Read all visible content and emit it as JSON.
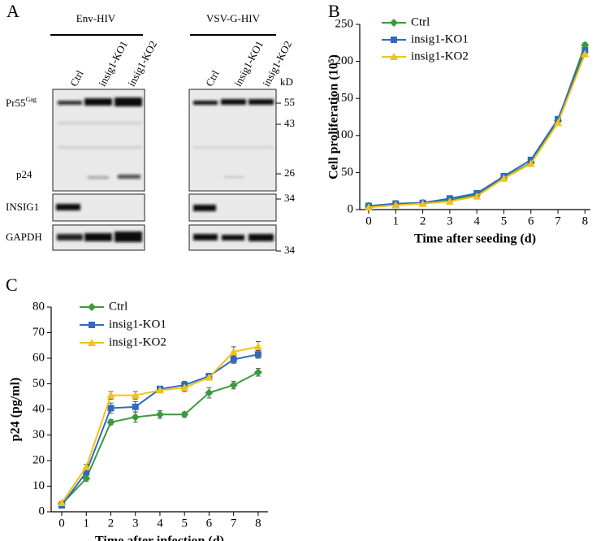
{
  "blot": {
    "panel": "A",
    "groups": [
      {
        "title": "Env-HIV",
        "lanes": [
          "Ctrl",
          "insig1-KO1",
          "insig1-KO2"
        ]
      },
      {
        "title": "VSV-G-HIV",
        "lanes": [
          "Ctrl",
          "insig1-KO1",
          "insig1-KO2"
        ]
      }
    ],
    "rows": [
      {
        "label": "Pr55",
        "sup": "Gag"
      },
      {
        "label": "p24"
      },
      {
        "label": "INSIG1"
      },
      {
        "label": "GAPDH"
      }
    ],
    "marker_unit": "kD",
    "markers": [
      55,
      43,
      26,
      34,
      34
    ]
  },
  "chart_data": [
    {
      "type": "line",
      "panel": "B",
      "x_label": "Time after seeding (d)",
      "y_label": "Cell proliferation (10⁵)",
      "x": [
        0,
        1,
        2,
        3,
        4,
        5,
        6,
        7,
        8
      ],
      "xlim": [
        -0.33,
        8.2
      ],
      "xticks": [
        0,
        1,
        2,
        3,
        4,
        5,
        6,
        7,
        8
      ],
      "ylim": [
        0,
        250
      ],
      "yticks": [
        0,
        50,
        100,
        150,
        200,
        250
      ],
      "legend": "upper left",
      "series": [
        {
          "name": "Ctrl",
          "color": "#3a9a3a",
          "marker": "diamond",
          "values": [
            5,
            8,
            9,
            13,
            20,
            43,
            63,
            120,
            222
          ],
          "errors": [
            0.5,
            0.5,
            0.5,
            1,
            1,
            1,
            2,
            2,
            3
          ]
        },
        {
          "name": "insig1-KO1",
          "color": "#2e6bbf",
          "marker": "square",
          "values": [
            5,
            8,
            9,
            15,
            22,
            45,
            67,
            122,
            215
          ],
          "errors": [
            0.5,
            0.5,
            0.5,
            1,
            1,
            1,
            2,
            2,
            3
          ]
        },
        {
          "name": "insig1-KO2",
          "color": "#f2c21b",
          "marker": "triangle",
          "values": [
            3,
            6,
            8,
            11,
            18,
            42,
            62,
            117,
            210
          ],
          "errors": [
            0.5,
            0.5,
            0.5,
            1,
            1,
            1,
            2,
            2,
            3
          ]
        }
      ]
    },
    {
      "type": "line",
      "panel": "C",
      "x_label": "Time after infection (d)",
      "y_label": "p24 (pg/ml)",
      "x": [
        0,
        1,
        2,
        3,
        4,
        5,
        6,
        7,
        8
      ],
      "xlim": [
        -0.43,
        8.4
      ],
      "xticks": [
        0,
        1,
        2,
        3,
        4,
        5,
        6,
        7,
        8
      ],
      "ylim": [
        0,
        80
      ],
      "yticks": [
        0,
        10,
        20,
        30,
        40,
        50,
        60,
        70,
        80
      ],
      "legend": "upper left",
      "series": [
        {
          "name": "Ctrl",
          "color": "#3a9a3a",
          "marker": "diamond",
          "values": [
            3,
            13,
            35,
            37,
            38,
            38,
            46.5,
            49.5,
            54.5
          ],
          "errors": [
            0.5,
            1,
            1,
            2,
            1.5,
            1,
            2,
            1.5,
            1.5
          ]
        },
        {
          "name": "insig1-KO1",
          "color": "#2e6bbf",
          "marker": "square",
          "values": [
            2.5,
            15.5,
            40.5,
            41,
            48,
            49.5,
            53,
            59.5,
            61.5
          ],
          "errors": [
            0.5,
            1,
            2,
            2,
            1,
            1.5,
            1,
            1.5,
            1.5
          ]
        },
        {
          "name": "insig1-KO2",
          "color": "#f2c21b",
          "marker": "triangle",
          "values": [
            3.5,
            17.5,
            45.5,
            45.5,
            47.5,
            48.5,
            52.5,
            62.5,
            64.5
          ],
          "errors": [
            0.5,
            1,
            1.5,
            1.5,
            1,
            1.5,
            1,
            2,
            2
          ]
        }
      ]
    }
  ]
}
